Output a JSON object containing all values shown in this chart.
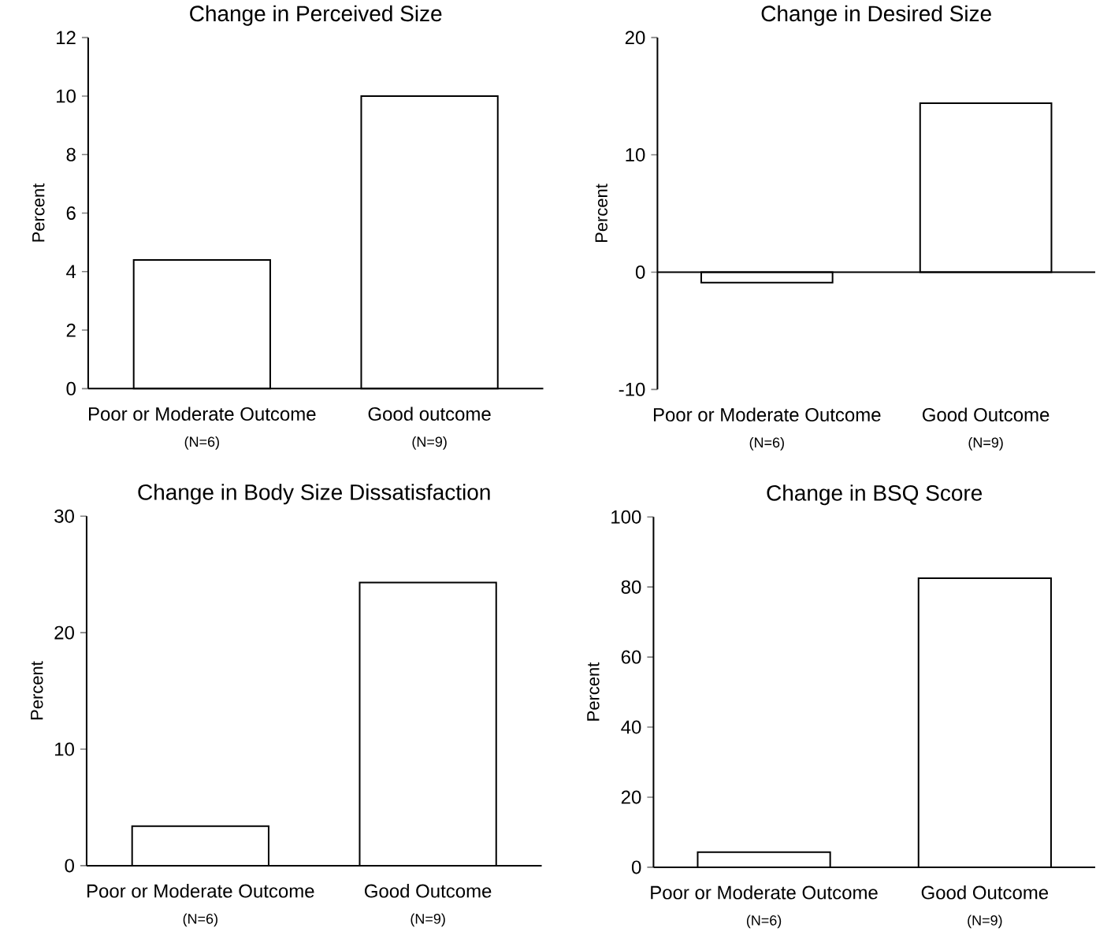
{
  "chart_data": [
    {
      "type": "bar",
      "title": "Change in Perceived Size",
      "ylabel": "Percent",
      "categories": [
        "Poor or Moderate Outcome",
        "Good outcome"
      ],
      "values": [
        4.4,
        10
      ],
      "color": "#ffffff",
      "ylim": [
        0,
        12
      ],
      "yticks": [
        0,
        2,
        4,
        6,
        8,
        10,
        12
      ],
      "annotations": [
        "(N=6)",
        "(N=9)"
      ]
    },
    {
      "type": "bar",
      "title": "Change in Desired Size",
      "ylabel": "Percent",
      "categories": [
        "Poor or Moderate Outcome",
        "Good Outcome"
      ],
      "values": [
        -0.9,
        14.4
      ],
      "color": "#ffffff",
      "ylim": [
        -10,
        20
      ],
      "yticks": [
        -10,
        0,
        10,
        20
      ],
      "annotations": [
        "(N=6)",
        "(N=9)"
      ]
    },
    {
      "type": "bar",
      "title": "Change in Body Size Dissatisfaction",
      "ylabel": "Percent",
      "categories": [
        "Poor or Moderate Outcome",
        "Good Outcome"
      ],
      "values": [
        3.4,
        24.3
      ],
      "color": "#ffffff",
      "ylim": [
        0,
        30
      ],
      "yticks": [
        0,
        10,
        20,
        30
      ],
      "annotations": [
        "(N=6)",
        "(N=9)"
      ]
    },
    {
      "type": "bar",
      "title": "Change in BSQ Score",
      "ylabel": "Percent",
      "categories": [
        "Poor or Moderate Outcome",
        "Good Outcome"
      ],
      "values": [
        4.3,
        82.5
      ],
      "color": "#ffffff",
      "ylim": [
        0,
        100
      ],
      "yticks": [
        0,
        20,
        40,
        60,
        80,
        100
      ],
      "annotations": [
        "(N=6)",
        "(N=9)"
      ]
    }
  ]
}
